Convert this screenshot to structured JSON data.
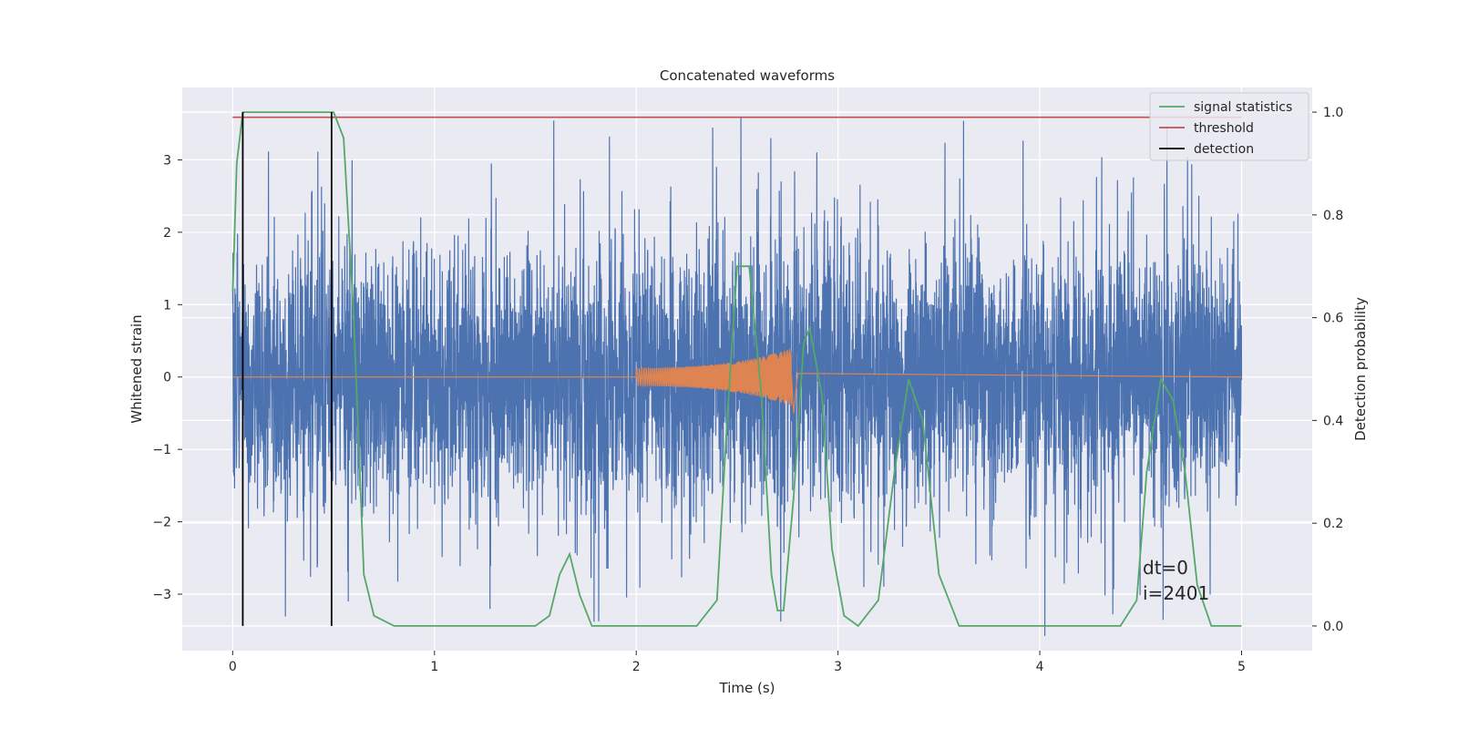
{
  "chart_data": {
    "type": "line",
    "title": "Concatenated waveforms",
    "xlabel": "Time (s)",
    "ylabel_left": "Whitened strain",
    "ylabel_right": "Detection probability",
    "xlim": [
      -0.25,
      5.35
    ],
    "ylim_left": [
      -3.78,
      4.0
    ],
    "ylim_right": [
      -0.048,
      1.048
    ],
    "x_ticks": [
      0,
      1,
      2,
      3,
      4,
      5
    ],
    "y_left_ticks": [
      -3,
      -2,
      -1,
      0,
      1,
      2,
      3
    ],
    "y_right_ticks": [
      0.0,
      0.2,
      0.4,
      0.6,
      0.8,
      1.0
    ],
    "x_tick_labels": [
      "0",
      "1",
      "2",
      "3",
      "4",
      "5"
    ],
    "y_left_tick_labels": [
      "−3",
      "−2",
      "−1",
      "0",
      "1",
      "2",
      "3"
    ],
    "y_right_tick_labels": [
      "0.0",
      "0.2",
      "0.4",
      "0.6",
      "0.8",
      "1.0"
    ],
    "grid": true,
    "legend_position": "top-right",
    "legend": [
      {
        "label": "signal statistics",
        "color": "#55a868"
      },
      {
        "label": "threshold",
        "color": "#c44e52"
      },
      {
        "label": "detection",
        "color": "#000000"
      }
    ],
    "series": [
      {
        "role": "whitened_strain_noise",
        "color": "#4c72b0",
        "x_range": [
          0,
          5
        ],
        "amplitude_approx": 1.5,
        "peak_abs_approx": 3.6
      },
      {
        "role": "injected_waveform",
        "color": "#dd8452",
        "x_range": [
          0,
          5
        ],
        "chirp_start": 2.0,
        "chirp_end": 2.77,
        "peak_approx": 0.35
      },
      {
        "role": "signal_statistics",
        "axis": "right",
        "color": "#55a868",
        "x": [
          0.0,
          0.02,
          0.05,
          0.1,
          0.2,
          0.35,
          0.5,
          0.55,
          0.6,
          0.65,
          0.7,
          0.8,
          1.0,
          1.5,
          1.57,
          1.62,
          1.67,
          1.72,
          1.78,
          1.85,
          2.0,
          2.3,
          2.4,
          2.45,
          2.5,
          2.56,
          2.62,
          2.67,
          2.7,
          2.73,
          2.78,
          2.83,
          2.86,
          2.92,
          2.97,
          3.03,
          3.1,
          3.2,
          3.28,
          3.35,
          3.42,
          3.5,
          3.6,
          4.0,
          4.4,
          4.48,
          4.53,
          4.6,
          4.66,
          4.72,
          4.78,
          4.85,
          5.0
        ],
        "y": [
          0.65,
          0.9,
          1.0,
          1.0,
          1.0,
          1.0,
          1.0,
          0.95,
          0.6,
          0.1,
          0.02,
          0.0,
          0.0,
          0.0,
          0.02,
          0.1,
          0.14,
          0.06,
          0.0,
          0.0,
          0.0,
          0.0,
          0.05,
          0.4,
          0.7,
          0.7,
          0.45,
          0.1,
          0.03,
          0.03,
          0.25,
          0.55,
          0.58,
          0.45,
          0.15,
          0.02,
          0.0,
          0.05,
          0.3,
          0.48,
          0.4,
          0.1,
          0.0,
          0.0,
          0.0,
          0.05,
          0.3,
          0.48,
          0.44,
          0.3,
          0.08,
          0.0,
          0.0
        ]
      },
      {
        "role": "threshold",
        "axis": "right",
        "color": "#c44e52",
        "x": [
          0,
          5
        ],
        "y": [
          0.99,
          0.99
        ]
      },
      {
        "role": "detection",
        "axis": "right",
        "color": "#000000",
        "vlines_x": [
          0.05,
          0.49
        ],
        "y_range": [
          0.0,
          1.0
        ]
      }
    ],
    "annotations": [
      "dt=0",
      "i=2401"
    ]
  }
}
